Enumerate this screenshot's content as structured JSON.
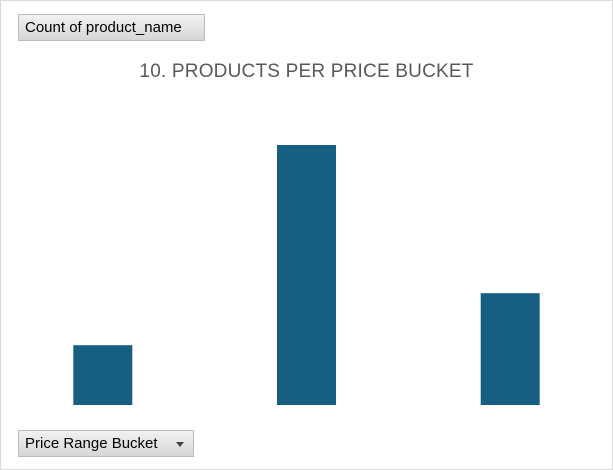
{
  "pivot": {
    "value_field_label": "Count of product_name",
    "axis_field_label": "Price Range Bucket",
    "dropdown_icon": "dropdown-arrow-icon"
  },
  "colors": {
    "bar": "#175f82",
    "title": "#595959",
    "frame_border": "#d9d9d9"
  },
  "chart_data": {
    "type": "bar",
    "title": "10. PRODUCTS PER PRICE BUCKET",
    "xlabel": "",
    "ylabel": "",
    "categories": [
      "",
      "",
      ""
    ],
    "values": [
      23,
      100,
      43
    ],
    "ylim": [
      0,
      110
    ],
    "grid": false,
    "legend": "none",
    "axes_visible": false
  }
}
